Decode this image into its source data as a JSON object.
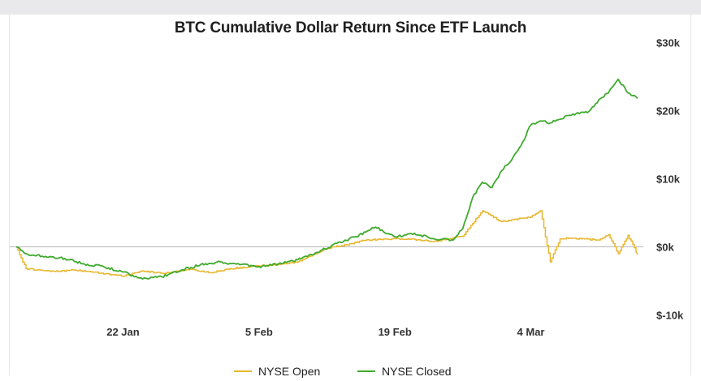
{
  "chart_data": {
    "type": "line",
    "title": "BTC Cumulative Dollar Return Since ETF Launch",
    "xlabel": "",
    "ylabel": "",
    "x_ticks": [
      "22 Jan",
      "5 Feb",
      "19 Feb",
      "4 Mar"
    ],
    "xlim": [
      "2024-01-11",
      "2024-03-15"
    ],
    "y_ticks": [
      "$30k",
      "$20k",
      "$10k",
      "$0k",
      "$-10k"
    ],
    "y_tick_values": [
      30000,
      20000,
      10000,
      0,
      -10000
    ],
    "ylim": [
      -11000,
      31000
    ],
    "y_axis_position": "right",
    "grid": false,
    "zero_line": true,
    "legend_position": "bottom-center",
    "series": [
      {
        "name": "NYSE Open",
        "color": "#e8b730",
        "points": [
          [
            "2024-01-11",
            0
          ],
          [
            "2024-01-12",
            -3200
          ],
          [
            "2024-01-15",
            -3600
          ],
          [
            "2024-01-17",
            -3400
          ],
          [
            "2024-01-19",
            -3700
          ],
          [
            "2024-01-22",
            -4300
          ],
          [
            "2024-01-24",
            -3500
          ],
          [
            "2024-01-26",
            -3900
          ],
          [
            "2024-01-29",
            -3300
          ],
          [
            "2024-01-31",
            -3800
          ],
          [
            "2024-02-02",
            -3200
          ],
          [
            "2024-02-05",
            -2800
          ],
          [
            "2024-02-07",
            -2600
          ],
          [
            "2024-02-09",
            -2200
          ],
          [
            "2024-02-12",
            -200
          ],
          [
            "2024-02-14",
            300
          ],
          [
            "2024-02-16",
            1000
          ],
          [
            "2024-02-19",
            1200
          ],
          [
            "2024-02-21",
            1100
          ],
          [
            "2024-02-23",
            800
          ],
          [
            "2024-02-26",
            1600
          ],
          [
            "2024-02-28",
            5300
          ],
          [
            "2024-03-01",
            3700
          ],
          [
            "2024-03-04",
            4400
          ],
          [
            "2024-03-05",
            5300
          ],
          [
            "2024-03-06",
            -2200
          ],
          [
            "2024-03-07",
            1200
          ],
          [
            "2024-03-08",
            1300
          ],
          [
            "2024-03-11",
            1000
          ],
          [
            "2024-03-12",
            1800
          ],
          [
            "2024-03-13",
            -1000
          ],
          [
            "2024-03-14",
            1700
          ],
          [
            "2024-03-15",
            -1100
          ]
        ]
      },
      {
        "name": "NYSE Closed",
        "color": "#3faa2e",
        "points": [
          [
            "2024-01-11",
            0
          ],
          [
            "2024-01-12",
            -1000
          ],
          [
            "2024-01-14",
            -1400
          ],
          [
            "2024-01-16",
            -1700
          ],
          [
            "2024-01-18",
            -2500
          ],
          [
            "2024-01-20",
            -2900
          ],
          [
            "2024-01-22",
            -3700
          ],
          [
            "2024-01-24",
            -4700
          ],
          [
            "2024-01-26",
            -4400
          ],
          [
            "2024-01-28",
            -3400
          ],
          [
            "2024-01-30",
            -2600
          ],
          [
            "2024-02-01",
            -2200
          ],
          [
            "2024-02-03",
            -2600
          ],
          [
            "2024-02-05",
            -2900
          ],
          [
            "2024-02-07",
            -2500
          ],
          [
            "2024-02-09",
            -1900
          ],
          [
            "2024-02-11",
            -800
          ],
          [
            "2024-02-13",
            500
          ],
          [
            "2024-02-15",
            1500
          ],
          [
            "2024-02-17",
            2900
          ],
          [
            "2024-02-19",
            1500
          ],
          [
            "2024-02-21",
            2000
          ],
          [
            "2024-02-23",
            1200
          ],
          [
            "2024-02-25",
            1000
          ],
          [
            "2024-02-26",
            2700
          ],
          [
            "2024-02-27",
            7200
          ],
          [
            "2024-02-28",
            9500
          ],
          [
            "2024-02-29",
            8700
          ],
          [
            "2024-03-01",
            11200
          ],
          [
            "2024-03-02",
            12700
          ],
          [
            "2024-03-03",
            14900
          ],
          [
            "2024-03-04",
            17900
          ],
          [
            "2024-03-05",
            18500
          ],
          [
            "2024-03-06",
            18200
          ],
          [
            "2024-03-08",
            19300
          ],
          [
            "2024-03-10",
            19900
          ],
          [
            "2024-03-11",
            21600
          ],
          [
            "2024-03-12",
            22600
          ],
          [
            "2024-03-13",
            24600
          ],
          [
            "2024-03-14",
            22600
          ],
          [
            "2024-03-15",
            21800
          ]
        ]
      }
    ]
  }
}
